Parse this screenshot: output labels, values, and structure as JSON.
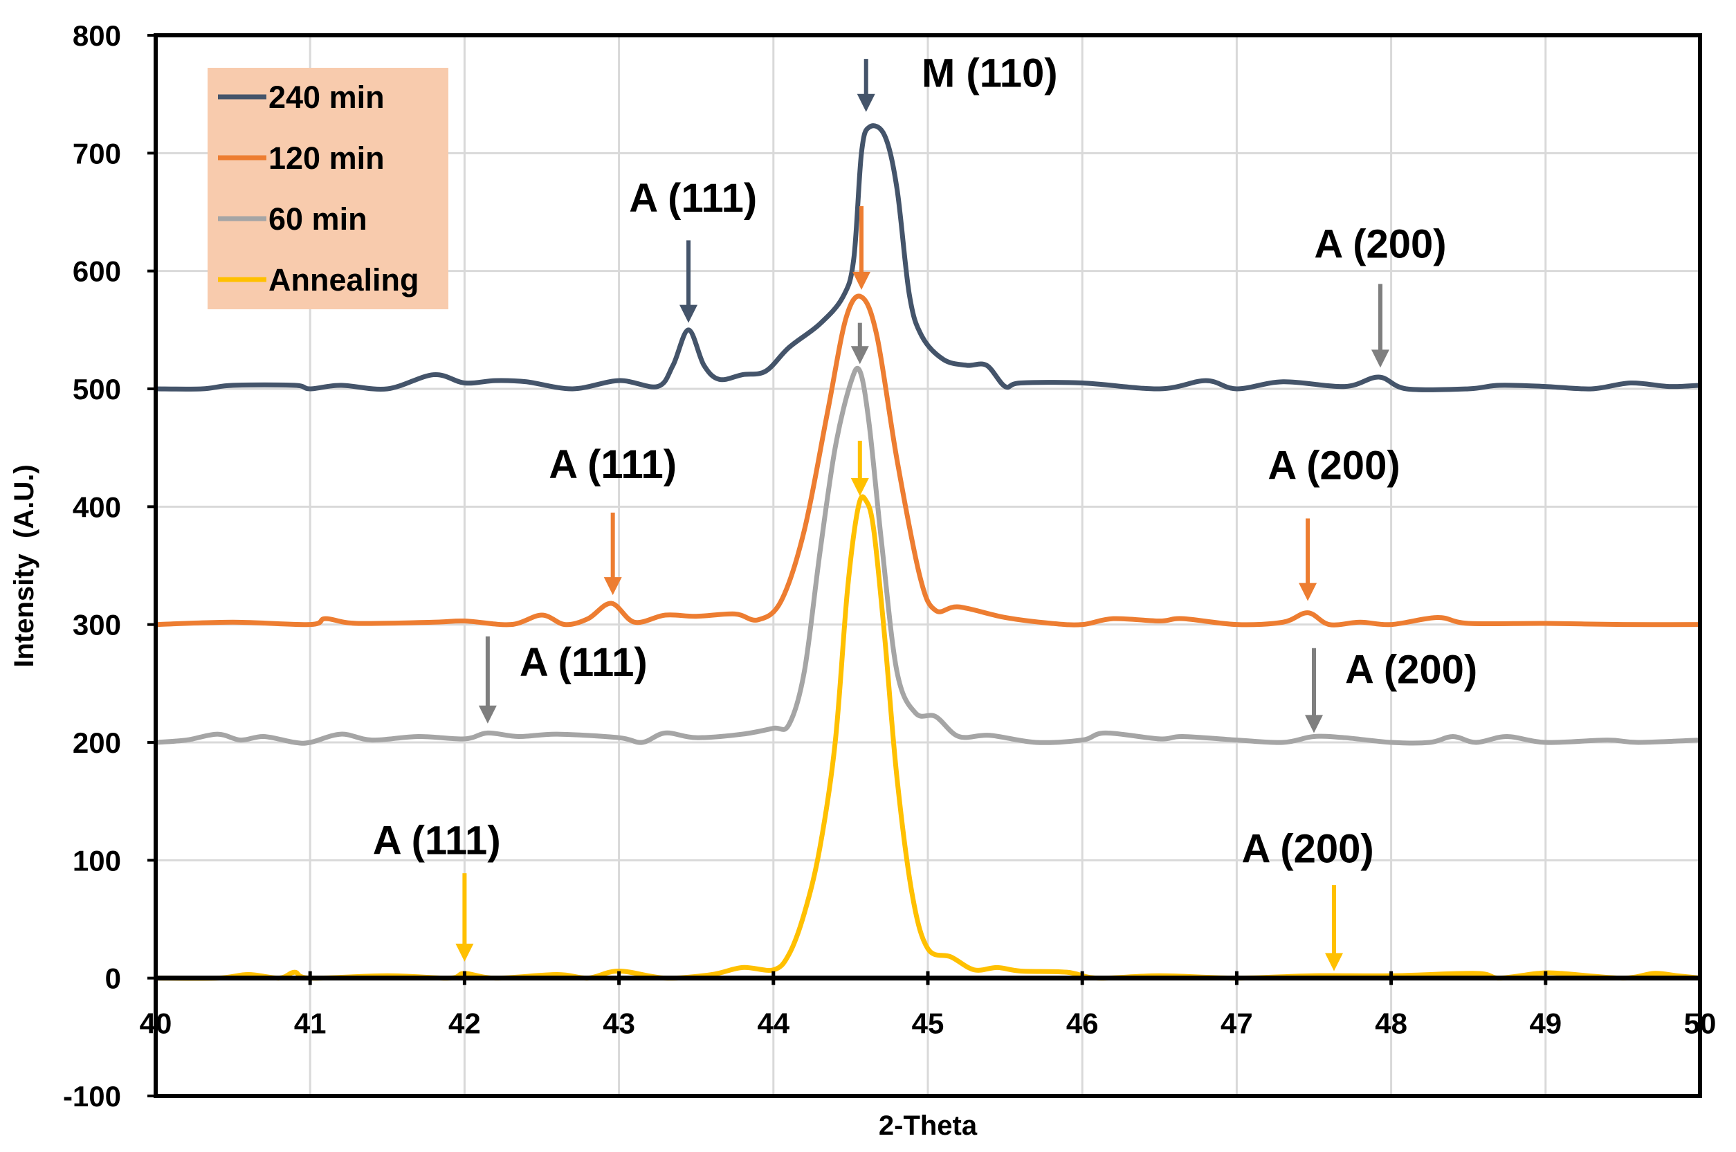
{
  "chart_data": {
    "type": "line",
    "title": "",
    "xlabel": "2-Theta",
    "ylabel": "Intensity  (A.U.)",
    "xlim": [
      40,
      50
    ],
    "ylim": [
      -100,
      800
    ],
    "xticks": [
      40,
      41,
      42,
      43,
      44,
      45,
      46,
      47,
      48,
      49,
      50
    ],
    "yticks": [
      -100,
      0,
      100,
      200,
      300,
      400,
      500,
      600,
      700,
      800
    ],
    "grid": true,
    "legend_position": "top-left",
    "series": [
      {
        "name": "240 min",
        "color": "#44546A",
        "x": [
          40,
          40.3,
          40.5,
          40.9,
          41.0,
          41.2,
          41.5,
          41.8,
          42.0,
          42.2,
          42.4,
          42.7,
          43.0,
          43.25,
          43.35,
          43.45,
          43.55,
          43.65,
          43.8,
          43.95,
          44.1,
          44.3,
          44.45,
          44.52,
          44.57,
          44.62,
          44.72,
          44.8,
          44.88,
          44.96,
          45.1,
          45.25,
          45.38,
          45.5,
          45.6,
          46.0,
          46.5,
          46.8,
          47.0,
          47.3,
          47.7,
          47.92,
          48.1,
          48.5,
          48.7,
          49.0,
          49.3,
          49.55,
          49.8,
          50
        ],
        "y": [
          500,
          500,
          503,
          503,
          500,
          503,
          500,
          512,
          505,
          507,
          506,
          500,
          507,
          502,
          520,
          550,
          520,
          508,
          512,
          515,
          535,
          555,
          578,
          610,
          700,
          722,
          715,
          670,
          580,
          545,
          525,
          520,
          520,
          502,
          505,
          505,
          500,
          507,
          500,
          506,
          502,
          510,
          500,
          500,
          503,
          502,
          500,
          505,
          502,
          503
        ]
      },
      {
        "name": "120 min",
        "color": "#ED7D31",
        "x": [
          40,
          40.5,
          41.0,
          41.1,
          41.3,
          41.8,
          42.0,
          42.3,
          42.5,
          42.65,
          42.8,
          42.95,
          43.1,
          43.3,
          43.5,
          43.75,
          43.9,
          44.05,
          44.2,
          44.35,
          44.47,
          44.57,
          44.67,
          44.8,
          44.95,
          45.05,
          45.2,
          45.5,
          45.8,
          46.0,
          46.2,
          46.5,
          46.65,
          47.0,
          47.3,
          47.46,
          47.6,
          47.8,
          48.0,
          48.3,
          48.5,
          49.0,
          49.5,
          50
        ],
        "y": [
          300,
          302,
          300,
          305,
          301,
          302,
          303,
          300,
          308,
          300,
          305,
          318,
          302,
          308,
          307,
          309,
          304,
          320,
          380,
          480,
          560,
          578,
          545,
          440,
          340,
          312,
          315,
          306,
          301,
          300,
          305,
          303,
          305,
          300,
          302,
          310,
          300,
          302,
          300,
          306,
          301,
          301,
          300,
          300
        ]
      },
      {
        "name": "60 min",
        "color": "#A5A5A5",
        "x": [
          40,
          40.2,
          40.4,
          40.55,
          40.7,
          40.9,
          41.0,
          41.2,
          41.4,
          41.7,
          42.0,
          42.15,
          42.35,
          42.6,
          43.0,
          43.15,
          43.3,
          43.5,
          43.8,
          44.0,
          44.1,
          44.2,
          44.3,
          44.4,
          44.5,
          44.56,
          44.62,
          44.7,
          44.8,
          44.92,
          45.05,
          45.2,
          45.4,
          45.7,
          46.0,
          46.15,
          46.5,
          46.65,
          47.0,
          47.3,
          47.5,
          47.7,
          48.0,
          48.25,
          48.4,
          48.55,
          48.75,
          49.0,
          49.4,
          49.6,
          50
        ],
        "y": [
          200,
          202,
          207,
          202,
          205,
          200,
          200,
          207,
          202,
          205,
          203,
          208,
          205,
          207,
          204,
          200,
          208,
          204,
          207,
          212,
          215,
          260,
          360,
          450,
          505,
          515,
          470,
          370,
          260,
          225,
          222,
          205,
          206,
          200,
          202,
          208,
          203,
          205,
          202,
          200,
          205,
          204,
          200,
          200,
          205,
          200,
          205,
          200,
          202,
          200,
          202
        ]
      },
      {
        "name": "Annealing",
        "color": "#FFC000",
        "x": [
          40,
          40.4,
          40.6,
          40.8,
          40.9,
          41.0,
          41.5,
          41.9,
          42.0,
          42.2,
          42.6,
          42.8,
          43.0,
          43.3,
          43.6,
          43.8,
          44.0,
          44.1,
          44.2,
          44.3,
          44.4,
          44.48,
          44.55,
          44.6,
          44.65,
          44.72,
          44.8,
          44.9,
          45.0,
          45.15,
          45.3,
          45.45,
          45.6,
          45.9,
          46.1,
          46.5,
          47.0,
          47.5,
          48.0,
          48.55,
          48.7,
          48.95,
          49.1,
          49.5,
          49.7,
          49.85,
          50
        ],
        "y": [
          0,
          0,
          3,
          0,
          5,
          0,
          2,
          0,
          4,
          0,
          3,
          0,
          6,
          0,
          3,
          9,
          7,
          20,
          55,
          110,
          200,
          330,
          400,
          405,
          380,
          290,
          170,
          70,
          25,
          18,
          7,
          9,
          6,
          5,
          0,
          2,
          0,
          2,
          2,
          4,
          0,
          4,
          4,
          0,
          4,
          2,
          0
        ]
      }
    ],
    "annotations": [
      {
        "label": "M (110)",
        "series": "240 min",
        "x": 44.6,
        "arrow_from": 780,
        "arrow_to": 735,
        "label_x": 45.4,
        "label_y": 768,
        "color": "#44546A"
      },
      {
        "label": "A (111)",
        "series": "240 min",
        "x": 43.45,
        "arrow_from": 626,
        "arrow_to": 556,
        "label_x": 43.48,
        "label_y": 662,
        "color": "#44546A"
      },
      {
        "label": "A (200)",
        "series": "240 min",
        "x": 47.93,
        "arrow_from": 589,
        "arrow_to": 518,
        "label_x": 47.93,
        "label_y": 623,
        "color": "#7F7F7F"
      },
      {
        "label": "",
        "series": "120 min",
        "x": 44.57,
        "arrow_from": 655,
        "arrow_to": 584,
        "color": "#ED7D31"
      },
      {
        "label": "A (111)",
        "series": "120 min",
        "x": 42.96,
        "arrow_from": 395,
        "arrow_to": 325,
        "label_x": 42.96,
        "label_y": 436,
        "color": "#ED7D31"
      },
      {
        "label": "A (200)",
        "series": "120 min",
        "x": 47.46,
        "arrow_from": 390,
        "arrow_to": 320,
        "label_x": 47.63,
        "label_y": 435,
        "color": "#ED7D31"
      },
      {
        "label": "",
        "series": "60 min",
        "x": 44.56,
        "arrow_from": 556,
        "arrow_to": 521,
        "color": "#7F7F7F"
      },
      {
        "label": "A (111)",
        "series": "60 min",
        "x": 42.15,
        "arrow_from": 290,
        "arrow_to": 216,
        "label_x": 42.77,
        "label_y": 268,
        "color": "#7F7F7F"
      },
      {
        "label": "A (200)",
        "series": "60 min",
        "x": 47.5,
        "arrow_from": 280,
        "arrow_to": 208,
        "label_x": 48.13,
        "label_y": 262,
        "color": "#7F7F7F"
      },
      {
        "label": "",
        "series": "Annealing",
        "x": 44.56,
        "arrow_from": 456,
        "arrow_to": 409,
        "color": "#FFC000"
      },
      {
        "label": "A (111)",
        "series": "Annealing",
        "x": 42.0,
        "arrow_from": 89,
        "arrow_to": 14,
        "label_x": 41.82,
        "label_y": 117,
        "color": "#FFC000"
      },
      {
        "label": "A (200)",
        "series": "Annealing",
        "x": 47.63,
        "arrow_from": 79,
        "arrow_to": 6,
        "label_x": 47.46,
        "label_y": 110,
        "color": "#FFC000"
      }
    ],
    "legend": {
      "background": "#F8CBAD"
    }
  }
}
